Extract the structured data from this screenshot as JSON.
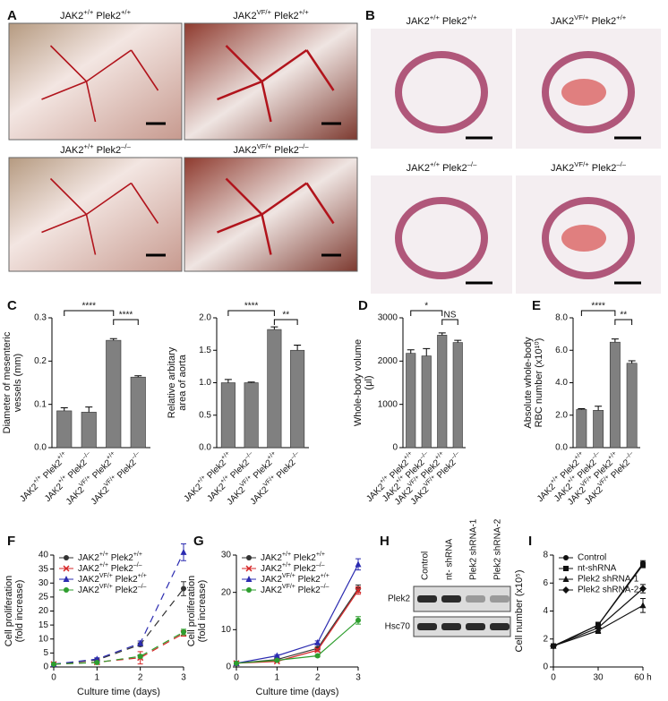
{
  "panel_labels": [
    "A",
    "B",
    "C",
    "D",
    "E",
    "F",
    "G",
    "H",
    "I"
  ],
  "images": {
    "A": [
      "JAK2+/+ Plek2+/+",
      "JAK2VF/+ Plek2+/+",
      "JAK2+/+ Plek2–/–",
      "JAK2VF/+ Plek2–/–"
    ],
    "B": [
      "JAK2+/+ Plek2+/+",
      "JAK2VF/+ Plek2+/+",
      "JAK2+/+ Plek2–/–",
      "JAK2VF/+ Plek2–/–"
    ]
  },
  "blot": {
    "lanes": [
      "Control",
      "nt- shRNA",
      "Plek2 shRNA-1",
      "Plek2 shRNA-2"
    ],
    "rows": [
      "Plek2",
      "Hsc70"
    ]
  },
  "chart_data": [
    {
      "type": "bar",
      "y_label": [
        "Diameter of mesenteric",
        "vessels (mm)"
      ],
      "categories": [
        "JAK2+/+ Plek2+/+",
        "JAK2+/+ Plek2–/–",
        "JAK2VF/+ Plek2+/+",
        "JAK2VF/+ Plek2–/–"
      ],
      "values": [
        0.085,
        0.082,
        0.248,
        0.163
      ],
      "errors": [
        0.007,
        0.012,
        0.004,
        0.003
      ],
      "color": "#808080",
      "ylim": [
        0,
        0.3
      ],
      "yticks": [
        {
          "value": 0,
          "label": "0.0"
        },
        0.1,
        0.2,
        0.3
      ],
      "annotations": [
        "****",
        "****"
      ]
    },
    {
      "type": "bar",
      "y_label": [
        "Relative arbitary",
        "area of aorta"
      ],
      "categories": [
        "JAK2+/+ Plek2+/+",
        "JAK2+/+ Plek2–/–",
        "JAK2VF/+ Plek2+/+",
        "JAK2VF/+ Plek2–/–"
      ],
      "values": [
        1.0,
        1.0,
        1.82,
        1.5
      ],
      "errors": [
        0.05,
        0.01,
        0.04,
        0.08
      ],
      "color": "#808080",
      "ylim": [
        0,
        2
      ],
      "yticks": [
        {
          "value": 0,
          "label": "0.0"
        },
        0.5,
        {
          "value": 1,
          "label": "1.0"
        },
        1.5,
        {
          "value": 2,
          "label": "2.0"
        }
      ],
      "annotations": [
        "****",
        "**"
      ]
    },
    {
      "type": "bar",
      "y_label": [
        "Whole-body volume",
        "(μl)"
      ],
      "categories": [
        "JAK2+/+ Plek2+/+",
        "JAK2+/+ Plek2–/–",
        "JAK2VF/+ Plek2+/+",
        "JAK2VF/+ Plek2–/–"
      ],
      "values": [
        2180,
        2120,
        2600,
        2430
      ],
      "errors": [
        80,
        170,
        50,
        50
      ],
      "color": "#808080",
      "ylim": [
        0,
        3000
      ],
      "yticks": [
        0,
        1000,
        2000,
        3000
      ],
      "annotations": [
        "*",
        "NS"
      ]
    },
    {
      "type": "bar",
      "y_label": [
        "Absolute whole-body",
        "RBC number (x10¹⁰)"
      ],
      "categories": [
        "JAK2+/+ Plek2+/+",
        "JAK2+/+ Plek2–/–",
        "JAK2VF/+ Plek2+/+",
        "JAK2VF/+ Plek2–/–"
      ],
      "values": [
        2.35,
        2.3,
        6.5,
        5.2
      ],
      "errors": [
        0.05,
        0.25,
        0.2,
        0.15
      ],
      "color": "#808080",
      "ylim": [
        0,
        8
      ],
      "yticks": [
        {
          "value": 0,
          "label": "0.0"
        },
        {
          "value": 2,
          "label": "2.0"
        },
        {
          "value": 4,
          "label": "4.0"
        },
        {
          "value": 6,
          "label": "6.0"
        },
        {
          "value": 8,
          "label": "8.0"
        }
      ],
      "annotations": [
        "****",
        "**"
      ]
    },
    {
      "type": "line",
      "y_label": [
        "Cell proliferation",
        "(fold increase)"
      ],
      "x_label": "Culture time (days)",
      "x": [
        0,
        1,
        2,
        3
      ],
      "xlim": [
        0,
        3
      ],
      "xticks": [
        0,
        1,
        2,
        3
      ],
      "ylim": [
        0,
        40
      ],
      "yticks": [
        0,
        5,
        10,
        15,
        20,
        25,
        30,
        35,
        40
      ],
      "line_style": "dashed",
      "series": [
        {
          "name": "JAK2+/+ Plek2+/+",
          "color": "#333333",
          "marker": "circle",
          "values": [
            1,
            2.5,
            8,
            28
          ],
          "errors": [
            0.1,
            0.4,
            0.6,
            2.5
          ]
        },
        {
          "name": "JAK2+/+ Plek2–/–",
          "color": "#d62728",
          "marker": "x",
          "values": [
            1,
            1.7,
            3.3,
            12
          ],
          "errors": [
            0.1,
            0.3,
            2.2,
            1
          ]
        },
        {
          "name": "JAK2VF/+ Plek2+/+",
          "color": "#2b2bb0",
          "marker": "triangle",
          "values": [
            1,
            2.8,
            8.5,
            41
          ],
          "errors": [
            0.1,
            0.5,
            0.8,
            3
          ]
        },
        {
          "name": "JAK2VF/+ Plek2–/–",
          "color": "#2e9e2e",
          "marker": "circle",
          "values": [
            1,
            1.6,
            3.8,
            12.5
          ],
          "errors": [
            0.1,
            0.3,
            0.6,
            1
          ]
        }
      ]
    },
    {
      "type": "line",
      "y_label": [
        "Cell proliferation",
        "(fold increase)"
      ],
      "x_label": "Culture time (days)",
      "x": [
        0,
        1,
        2,
        3
      ],
      "xlim": [
        0,
        3
      ],
      "xticks": [
        0,
        1,
        2,
        3
      ],
      "ylim": [
        0,
        30
      ],
      "yticks": [
        0,
        10,
        20,
        30
      ],
      "line_style": "solid",
      "series": [
        {
          "name": "JAK2+/+ Plek2+/+",
          "color": "#333333",
          "marker": "circle",
          "values": [
            1,
            2,
            5,
            21
          ],
          "errors": [
            0.1,
            0.3,
            0.4,
            1
          ]
        },
        {
          "name": "JAK2+/+ Plek2–/–",
          "color": "#d62728",
          "marker": "x",
          "values": [
            1,
            1.5,
            4.5,
            20.5
          ],
          "errors": [
            0.1,
            0.2,
            0.4,
            1
          ]
        },
        {
          "name": "JAK2VF/+ Plek2+/+",
          "color": "#2b2bb0",
          "marker": "triangle",
          "values": [
            1,
            3,
            6.5,
            27.5
          ],
          "errors": [
            0.1,
            0.3,
            0.5,
            1.5
          ]
        },
        {
          "name": "JAK2VF/+ Plek2–/–",
          "color": "#2e9e2e",
          "marker": "circle",
          "values": [
            1,
            1.8,
            3,
            12.5
          ],
          "errors": [
            0.1,
            0.2,
            0.3,
            1
          ]
        }
      ]
    },
    {
      "type": "line",
      "y_label": [
        "Cell number (x10⁵)"
      ],
      "x": [
        0,
        30,
        60
      ],
      "xlim": [
        0,
        60
      ],
      "xticks": [
        0,
        30,
        {
          "value": 60,
          "label": "60 h"
        }
      ],
      "ylim": [
        0,
        8
      ],
      "yticks": [
        0,
        2,
        4,
        6,
        8
      ],
      "line_style": "solid",
      "series": [
        {
          "name": "Control",
          "color": "#111111",
          "marker": "circle",
          "values": [
            1.5,
            3,
            7.4
          ],
          "errors": [
            0.1,
            0.2,
            0.2
          ]
        },
        {
          "name": "nt-shRNA",
          "color": "#111111",
          "marker": "square",
          "values": [
            1.5,
            3,
            7.3
          ],
          "errors": [
            0.1,
            0.2,
            0.2
          ]
        },
        {
          "name": "Plek2 shRNA-1",
          "color": "#111111",
          "marker": "triangle",
          "values": [
            1.5,
            2.6,
            4.4
          ],
          "errors": [
            0.1,
            0.2,
            0.5
          ]
        },
        {
          "name": "Plek2 shRNA-2",
          "color": "#111111",
          "marker": "diamond",
          "values": [
            1.5,
            2.8,
            5.6
          ],
          "errors": [
            0.1,
            0.2,
            0.3
          ]
        }
      ]
    }
  ]
}
